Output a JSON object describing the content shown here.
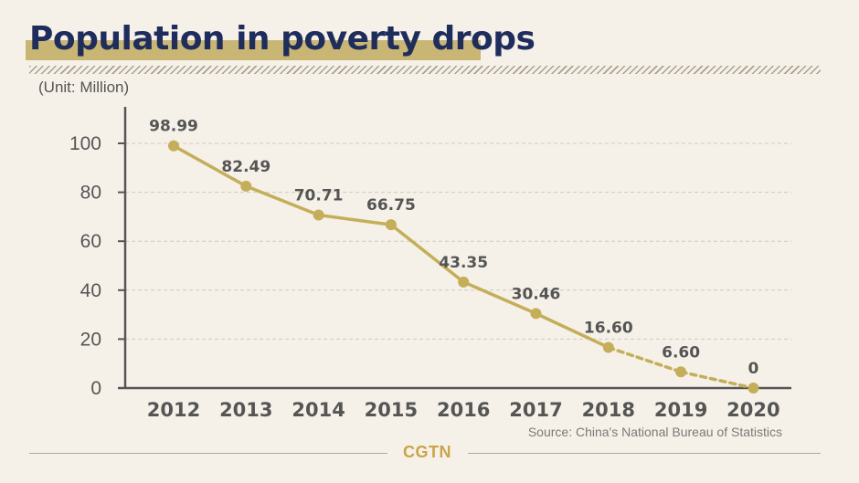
{
  "title": "Population in poverty drops",
  "unit_label": "(Unit: Million)",
  "source": "Source: China's National Bureau of Statistics",
  "logo": "CGTN",
  "colors": {
    "background": "#f6f1e8",
    "title": "#1f2d5c",
    "title_highlight": "#c9b675",
    "series": "#c4ae5a",
    "axis": "#555555",
    "grid": "#cfcac0",
    "logo": "#c9a548"
  },
  "chart_data": {
    "type": "line",
    "title": "Population in poverty drops",
    "ylabel": "(Unit: Million)",
    "xlabel": "",
    "categories": [
      "2012",
      "2013",
      "2014",
      "2015",
      "2016",
      "2017",
      "2018",
      "2019",
      "2020"
    ],
    "values": [
      98.99,
      82.49,
      70.71,
      66.75,
      43.35,
      30.46,
      16.6,
      6.6,
      0
    ],
    "data_labels": [
      "98.99",
      "82.49",
      "70.71",
      "66.75",
      "43.35",
      "30.46",
      "16.60",
      "6.60",
      "0"
    ],
    "dashed_from_index": 6,
    "ylim": [
      0,
      100
    ],
    "yticks": [
      "0",
      "20",
      "40",
      "60",
      "80",
      "100"
    ],
    "grid": true,
    "grid_style": "dashed horizontal"
  }
}
